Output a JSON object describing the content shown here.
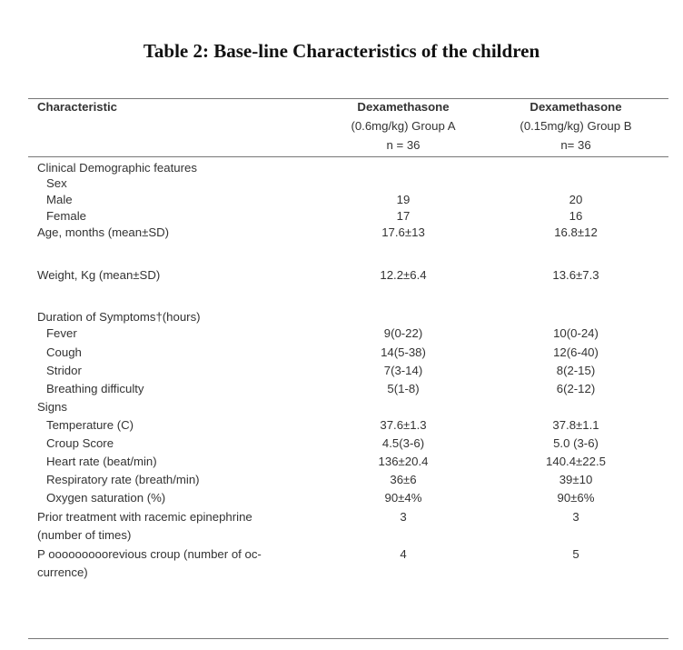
{
  "title": "Table 2: Base-line Characteristics of the children",
  "header": {
    "col1": "Characteristic",
    "col2_l1": "Dexamethasone",
    "col2_l2": "(0.6mg/kg) Group A",
    "col2_l3": "n = 36",
    "col3_l1": "Dexamethasone",
    "col3_l2": "(0.15mg/kg) Group B",
    "col3_l3": "n= 36"
  },
  "rows": {
    "clinical": "Clinical Demographic features",
    "sex": "Sex",
    "male": {
      "label": "Male",
      "a": "19",
      "b": "20"
    },
    "female": {
      "label": "Female",
      "a": "17",
      "b": "16"
    },
    "age": {
      "label": "Age, months (mean±SD)",
      "a": "17.6±13",
      "b": "16.8±12"
    },
    "weight": {
      "label": "Weight, Kg (mean±SD)",
      "a": "12.2±6.4",
      "b": "13.6±7.3"
    },
    "duration": "Duration of Symptoms†(hours)",
    "fever": {
      "label": "Fever",
      "a": "9(0-22)",
      "b": "10(0-24)"
    },
    "cough": {
      "label": "Cough",
      "a": "14(5-38)",
      "b": "12(6-40)"
    },
    "stridor": {
      "label": "Stridor",
      "a": "7(3-14)",
      "b": "8(2-15)"
    },
    "breathing": {
      "label": "Breathing difficulty",
      "a": "5(1-8)",
      "b": "6(2-12)"
    },
    "signs": "Signs",
    "temperature": {
      "label": "Temperature (C)",
      "a": "37.6±1.3",
      "b": "37.8±1.1"
    },
    "croup": {
      "label": "Croup Score",
      "a": "4.5(3-6)",
      "b": "5.0 (3-6)"
    },
    "heart": {
      "label": "Heart rate (beat/min)",
      "a": "136±20.4",
      "b": "140.4±22.5"
    },
    "resp": {
      "label": "Respiratory rate (breath/min)",
      "a": "36±6",
      "b": "39±10"
    },
    "oxygen": {
      "label": "Oxygen saturation (%)",
      "a": "90±4%",
      "b": "90±6%"
    },
    "prior": {
      "label_l1": "Prior treatment with racemic epinephrine",
      "label_l2": "(number of times)",
      "a": "3",
      "b": "3"
    },
    "previous": {
      "label_l1": "P ooooooooorevious croup (number of oc-",
      "label_l2": "currence)",
      "a": "4",
      "b": "5"
    }
  }
}
